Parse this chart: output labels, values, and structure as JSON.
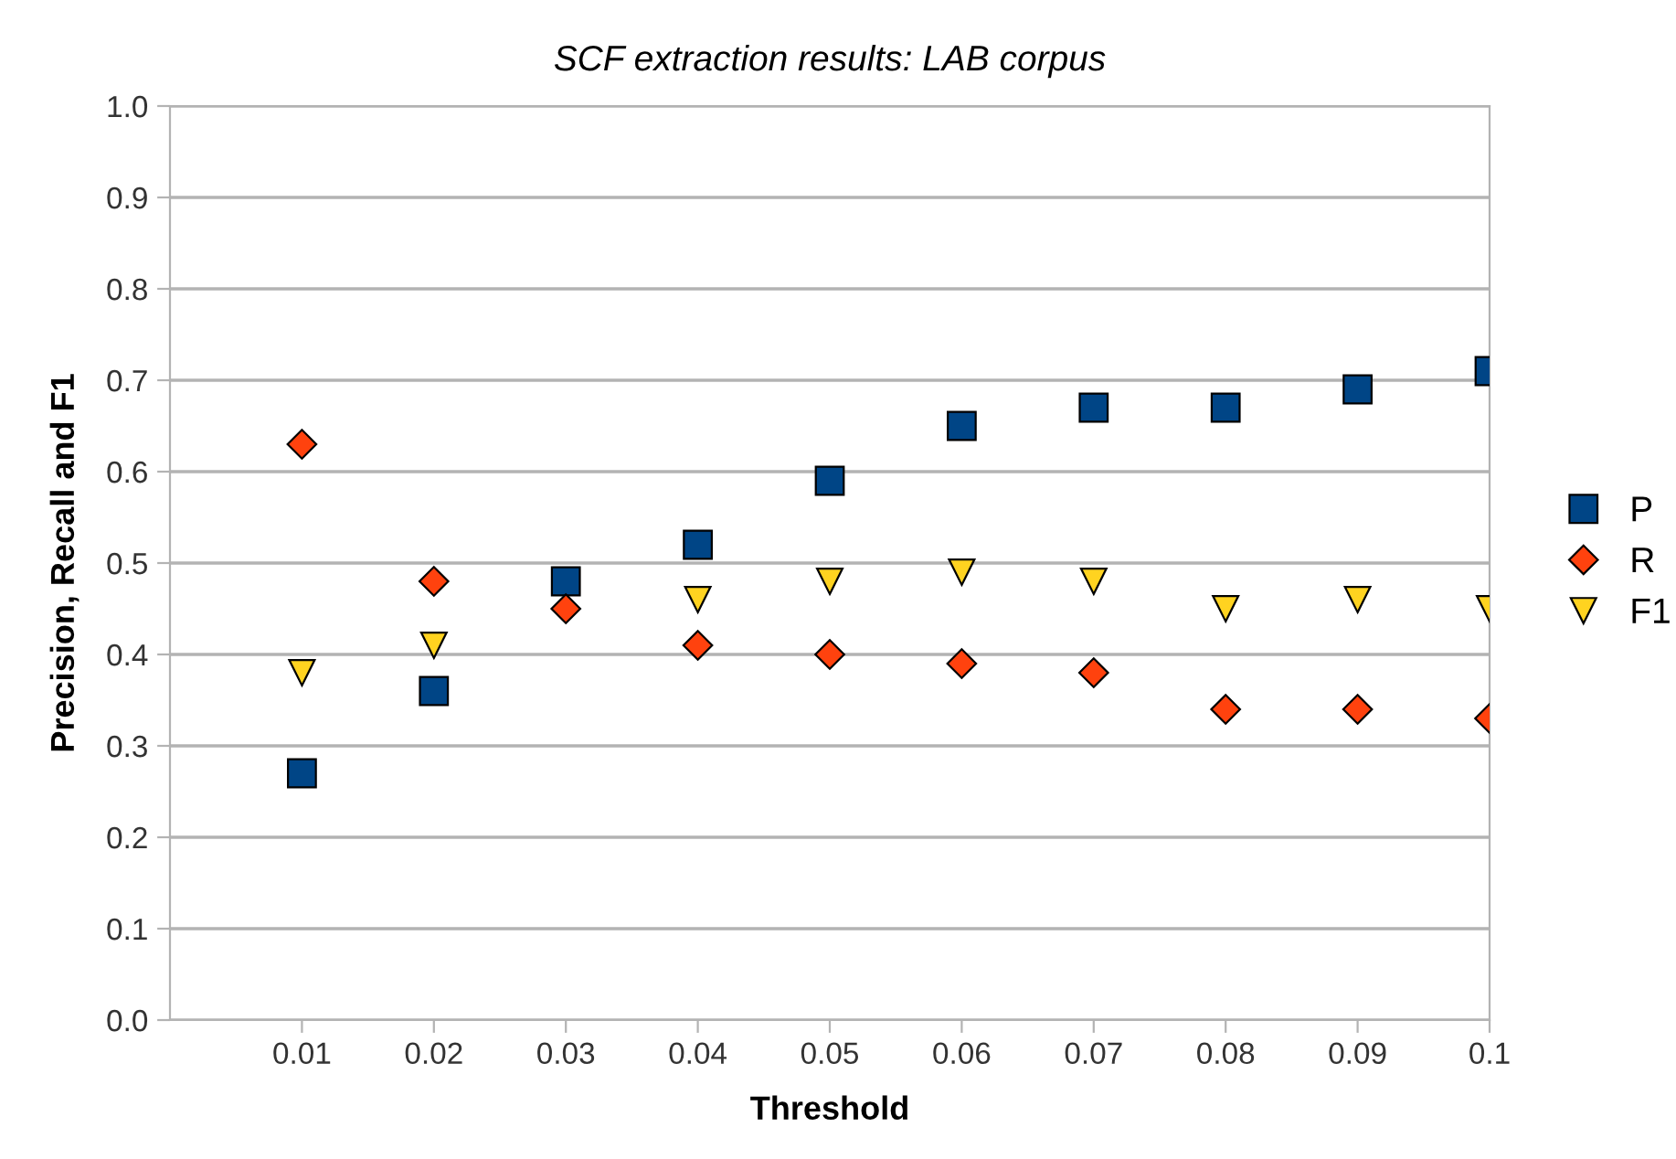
{
  "chart_data": {
    "type": "scatter",
    "title": "SCF extraction results: LAB corpus",
    "xlabel": "Threshold",
    "ylabel": "Precision, Recall and F1",
    "x": [
      0.01,
      0.02,
      0.03,
      0.04,
      0.05,
      0.06,
      0.07,
      0.08,
      0.09,
      0.1
    ],
    "series": [
      {
        "name": "P",
        "color": "#004586",
        "marker": "square",
        "values": [
          0.27,
          0.36,
          0.48,
          0.52,
          0.59,
          0.65,
          0.67,
          0.67,
          0.69,
          0.71
        ]
      },
      {
        "name": "R",
        "color": "#ff420e",
        "marker": "diamond",
        "values": [
          0.63,
          0.48,
          0.45,
          0.41,
          0.4,
          0.39,
          0.38,
          0.34,
          0.34,
          0.33
        ]
      },
      {
        "name": "F1",
        "color": "#ffd320",
        "marker": "triangle",
        "values": [
          0.38,
          0.41,
          null,
          0.46,
          0.48,
          0.49,
          0.48,
          0.45,
          0.46,
          0.45
        ]
      }
    ],
    "xlim": [
      0,
      0.1
    ],
    "xticks": [
      0.01,
      0.02,
      0.03,
      0.04,
      0.05,
      0.06,
      0.07,
      0.08,
      0.09,
      0.1
    ],
    "ylim": [
      0,
      1
    ],
    "yticks": [
      {
        "value": 0,
        "label": "0.0"
      },
      0.1,
      0.2,
      0.3,
      0.4,
      0.5,
      0.6,
      0.7,
      0.8,
      0.9,
      {
        "value": 1,
        "label": "1.0"
      }
    ],
    "grid": "y",
    "legend": "right"
  }
}
